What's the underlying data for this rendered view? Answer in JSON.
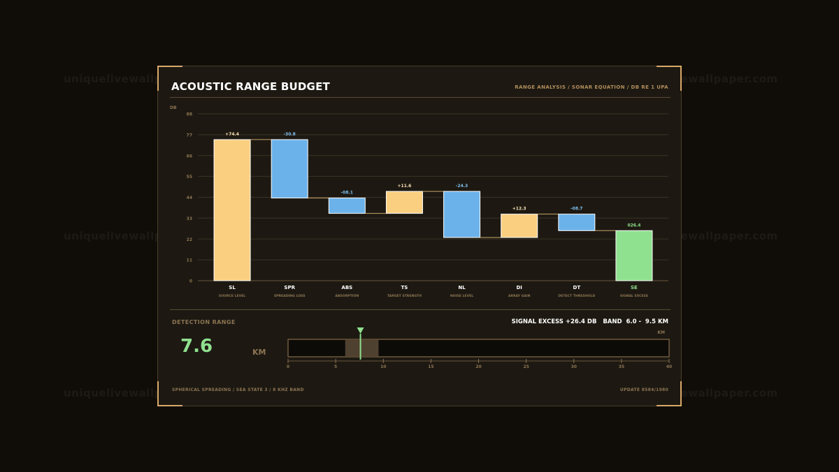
{
  "watermark": "uniquelivewallpaper.com",
  "header": {
    "title": "ACOUSTIC RANGE BUDGET",
    "subtitle": "RANGE ANALYSIS / SONAR EQUATION / DB RE 1 UPA"
  },
  "chart_data": {
    "type": "bar",
    "subtype": "waterfall",
    "ylabel": "DB",
    "ylim": [
      0,
      88
    ],
    "yticks": [
      "0",
      "11",
      "22",
      "33",
      "44",
      "55",
      "66",
      "77",
      "88"
    ],
    "grid": true,
    "categories": [
      "SL",
      "SPR",
      "ABS",
      "TS",
      "NL",
      "DI",
      "DT",
      "SE"
    ],
    "category_descriptions": [
      "SOURCE LEVEL",
      "SPREADING LOSS",
      "ABSORPTION",
      "TARGET STRENGTH",
      "NOISE LEVEL",
      "ARRAY GAIN",
      "DETECT THRESHOLD",
      "SIGNAL EXCESS"
    ],
    "value_labels": [
      "+74.4",
      "-30.8",
      "-08.1",
      "+11.6",
      "-24.3",
      "+12.3",
      "-08.7",
      "026.4"
    ],
    "values": [
      74.4,
      -30.8,
      -8.1,
      11.6,
      -24.3,
      12.3,
      -8.7,
      26.4
    ],
    "kinds": [
      "gain",
      "loss",
      "loss",
      "gain",
      "loss",
      "gain",
      "loss",
      "total"
    ],
    "colors": {
      "gain": "#fbcf80",
      "loss": "#6cb2ea",
      "total": "#8fe08f",
      "connector": "#c9a46c"
    }
  },
  "detection": {
    "label": "DETECTION RANGE",
    "value": "7.6",
    "unit": "KM",
    "summary": "SIGNAL EXCESS +26.4 DB   BAND  6.0 -  9.5 KM",
    "axis_unit": "KM",
    "scale": {
      "min": 0,
      "max": 40,
      "ticks": [
        "0",
        "5",
        "10",
        "15",
        "20",
        "25",
        "30",
        "35",
        "40"
      ],
      "band": [
        6.0,
        9.5
      ],
      "marker": 7.6
    },
    "colors": {
      "band": "#4f4130",
      "marker": "#8fe08f"
    }
  },
  "footer": {
    "left": "SPHERICAL SPREADING / SEA STATE 3 / 8 KHZ BAND",
    "right": "UPDATE 8584/1980"
  }
}
